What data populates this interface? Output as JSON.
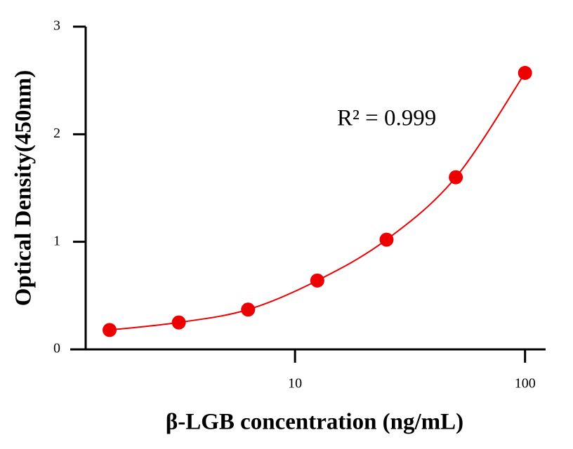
{
  "chart_data": {
    "type": "scatter",
    "x_label": "β-LGB concentration (ng/mL)",
    "y_label": "Optical Density(450nm)",
    "annotation": "R² = 0.999",
    "x": [
      1.5625,
      3.125,
      6.25,
      12.5,
      25,
      50,
      100
    ],
    "series": [
      {
        "color": "#ee0000",
        "values": [
          0.18,
          0.25,
          0.37,
          0.64,
          1.02,
          1.6,
          2.57
        ]
      }
    ],
    "xlim": [
      1.23,
      122
    ],
    "xticks": [
      10,
      100
    ],
    "x_log_scale": true,
    "ylim": [
      0,
      3
    ],
    "yticks": [
      0,
      1,
      2,
      3
    ]
  }
}
